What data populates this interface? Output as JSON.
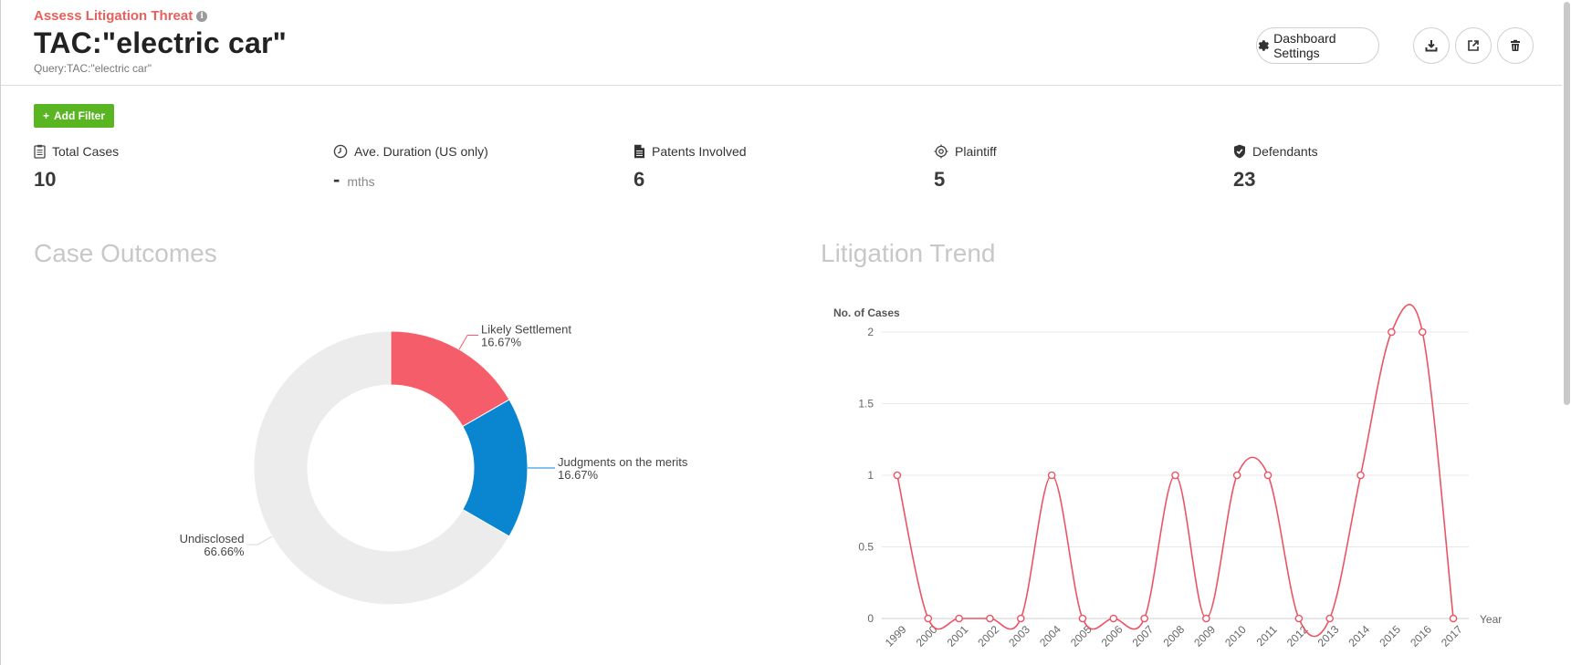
{
  "header": {
    "module_title": "Assess Litigation Threat",
    "page_title": "TAC:\"electric car\"",
    "query": "Query:TAC:\"electric car\"",
    "settings_label": "Dashboard Settings"
  },
  "filters": {
    "add_label": "Add Filter"
  },
  "stats": [
    {
      "label": "Total Cases",
      "value": "10",
      "unit": "",
      "icon": "clipboard-icon"
    },
    {
      "label": "Ave. Duration (US only)",
      "value": "-",
      "unit": "mths",
      "icon": "clock-icon"
    },
    {
      "label": "Patents Involved",
      "value": "6",
      "unit": "",
      "icon": "document-icon"
    },
    {
      "label": "Plaintiff",
      "value": "5",
      "unit": "",
      "icon": "target-icon"
    },
    {
      "label": "Defendants",
      "value": "23",
      "unit": "",
      "icon": "shield-icon"
    }
  ],
  "sections": {
    "case_outcomes": "Case Outcomes",
    "litigation_trend": "Litigation Trend"
  },
  "chart_data": [
    {
      "type": "pie",
      "title": "Case Outcomes",
      "slices": [
        {
          "label": "Likely Settlement",
          "pct_label": "16.67%",
          "value": 16.67,
          "color": "#f65d6b"
        },
        {
          "label": "Judgments on the merits",
          "pct_label": "16.67%",
          "value": 16.67,
          "color": "#0a85d0"
        },
        {
          "label": "Undisclosed",
          "pct_label": "66.66%",
          "value": 66.66,
          "color": "#ececec"
        }
      ]
    },
    {
      "type": "line",
      "title": "Litigation Trend",
      "ylabel": "No. of Cases",
      "xlabel": "Year",
      "ylim": [
        0,
        2
      ],
      "yticks": [
        "0",
        "0.5",
        "1",
        "1.5",
        "2"
      ],
      "categories": [
        "1999",
        "2000",
        "2001",
        "2002",
        "2003",
        "2004",
        "2005",
        "2006",
        "2007",
        "2008",
        "2009",
        "2010",
        "2011",
        "2012",
        "2013",
        "2014",
        "2015",
        "2016",
        "2017"
      ],
      "series": [
        {
          "values": [
            1,
            0,
            0,
            0,
            0,
            1,
            0,
            0,
            0,
            1,
            0,
            1,
            1,
            0,
            0,
            1,
            2,
            2,
            0
          ],
          "color": "#ea5464"
        }
      ]
    }
  ]
}
